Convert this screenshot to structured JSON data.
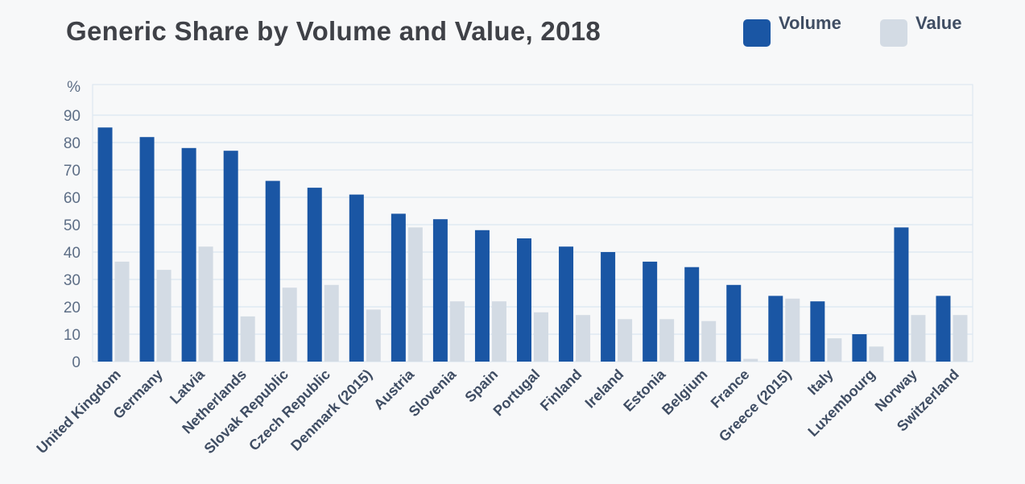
{
  "chart_data": {
    "type": "bar",
    "title": "Generic Share by Volume and Value, 2018",
    "ylabel": "%",
    "ylim": [
      0,
      100
    ],
    "yticks": [
      0,
      10,
      20,
      30,
      40,
      50,
      60,
      70,
      80,
      90
    ],
    "grid": true,
    "legend_position": "top-right",
    "categories": [
      "United Kingdom",
      "Germany",
      "Latvia",
      "Netherlands",
      "Slovak Republic",
      "Czech Republic",
      "Denmark (2015)",
      "Austria",
      "Slovenia",
      "Spain",
      "Portugal",
      "Finland",
      "Ireland",
      "Estonia",
      "Belgium",
      "France",
      "Greece (2015)",
      "Italy",
      "Luxembourg",
      "Norway",
      "Switzerland"
    ],
    "series": [
      {
        "name": "Volume",
        "color": "#1a56a4",
        "values": [
          85.5,
          82,
          78,
          77,
          66,
          63.5,
          61,
          54,
          52,
          48,
          45,
          42,
          40,
          36.5,
          34.5,
          28,
          24,
          22,
          10,
          49,
          24
        ]
      },
      {
        "name": "Value",
        "color": "#d3dbe4",
        "values": [
          36.5,
          33.5,
          42,
          16.5,
          27,
          28,
          19,
          49,
          22,
          22,
          18,
          17,
          15.5,
          15.5,
          14.8,
          1,
          23,
          8.5,
          5.5,
          17,
          17
        ]
      }
    ]
  }
}
